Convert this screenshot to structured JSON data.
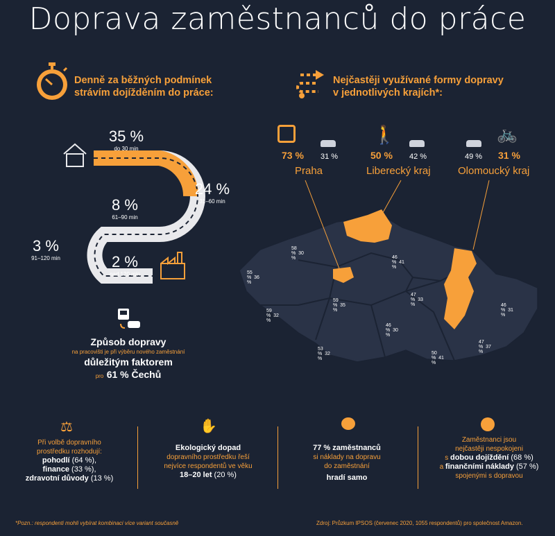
{
  "title": "Doprava zaměstnanců do práce",
  "left_header": {
    "line1": "Denně za běžných podmínek",
    "line2": "strávím dojížděním do práce:"
  },
  "right_header": {
    "line1": "Nejčastěji využívané formy dopravy",
    "line2": "v jednotlivých krajích*:"
  },
  "commute": [
    {
      "value": "35 %",
      "label": "do 30 min"
    },
    {
      "value": "24 %",
      "label": "31–60 min"
    },
    {
      "value": "8 %",
      "label": "61–90 min"
    },
    {
      "value": "3 %",
      "label": "91–120 min"
    },
    {
      "value": "2 %",
      "label": "nad 120 min"
    }
  ],
  "factor": {
    "line1": "Způsob dopravy",
    "line2": "na pracovišti je při výběru nového zaměstnání",
    "line3": "důležitým faktorem",
    "line4_pre": "pro",
    "line4": "61 % Čechů"
  },
  "highlight_regions": [
    {
      "name": "Praha",
      "main": "73 %",
      "second": "31 %",
      "main_icon": "bus-icon"
    },
    {
      "name": "Liberecký kraj",
      "main": "50 %",
      "second": "42 %",
      "main_icon": "walking-icon"
    },
    {
      "name": "Olomoucký kraj",
      "main": "31 %",
      "second": "49 %",
      "main_icon": "bicycle-icon"
    }
  ],
  "map_values": [
    {
      "a": "58 %",
      "b": "30 %"
    },
    {
      "a": "46 %",
      "b": "41 %"
    },
    {
      "a": "55 %",
      "b": "36 %"
    },
    {
      "a": "59 %",
      "b": "35 %"
    },
    {
      "a": "47 %",
      "b": "33 %"
    },
    {
      "a": "59 %",
      "b": "32 %"
    },
    {
      "a": "46 %",
      "b": "31 %"
    },
    {
      "a": "46 %",
      "b": "30 %"
    },
    {
      "a": "53 %",
      "b": "32 %"
    },
    {
      "a": "47 %",
      "b": "37 %"
    },
    {
      "a": "50 %",
      "b": "41 %"
    }
  ],
  "bottom": {
    "c1": {
      "l1": "Při volbě dopravního",
      "l2": "prostředku rozhodují:",
      "l3b": "pohodlí",
      "l3": " (64 %),",
      "l4b": "finance",
      "l4": " (33 %),",
      "l5b": "zdravotní důvody",
      "l5": " (13 %)"
    },
    "c2": {
      "l1": "Ekologický dopad",
      "l2": "dopravního prostředku řeší",
      "l3": "nejvíce respondentů ve věku",
      "l4b": "18–20 let",
      "l4": " (20 %)"
    },
    "c3": {
      "l1": "77 % zaměstnanců",
      "l2": "si náklady na dopravu",
      "l3": "do zaměstnání",
      "l4": "hradí samo"
    },
    "c4": {
      "l1": "Zaměstnanci jsou",
      "l2": "nejčastěji nespokojeni",
      "l3a": "s",
      "l3b": "dobou dojíždění",
      "l3": " (68 %)",
      "l4a": "a",
      "l4b": "finančními náklady",
      "l4": " (57 %)",
      "l5": "spojenými s dopravou"
    }
  },
  "footnote": "*Pozn.: respondenti mohli vybírat kombinaci více variant současně",
  "source": "Zdroj: Průzkum IPSOS (červenec 2020, 1055 respondentů) pro společnost Amazon.",
  "colors": {
    "background": "#1b2333",
    "accent": "#f7a03a",
    "map": "#2a3347",
    "road": "#e9e9ec"
  }
}
